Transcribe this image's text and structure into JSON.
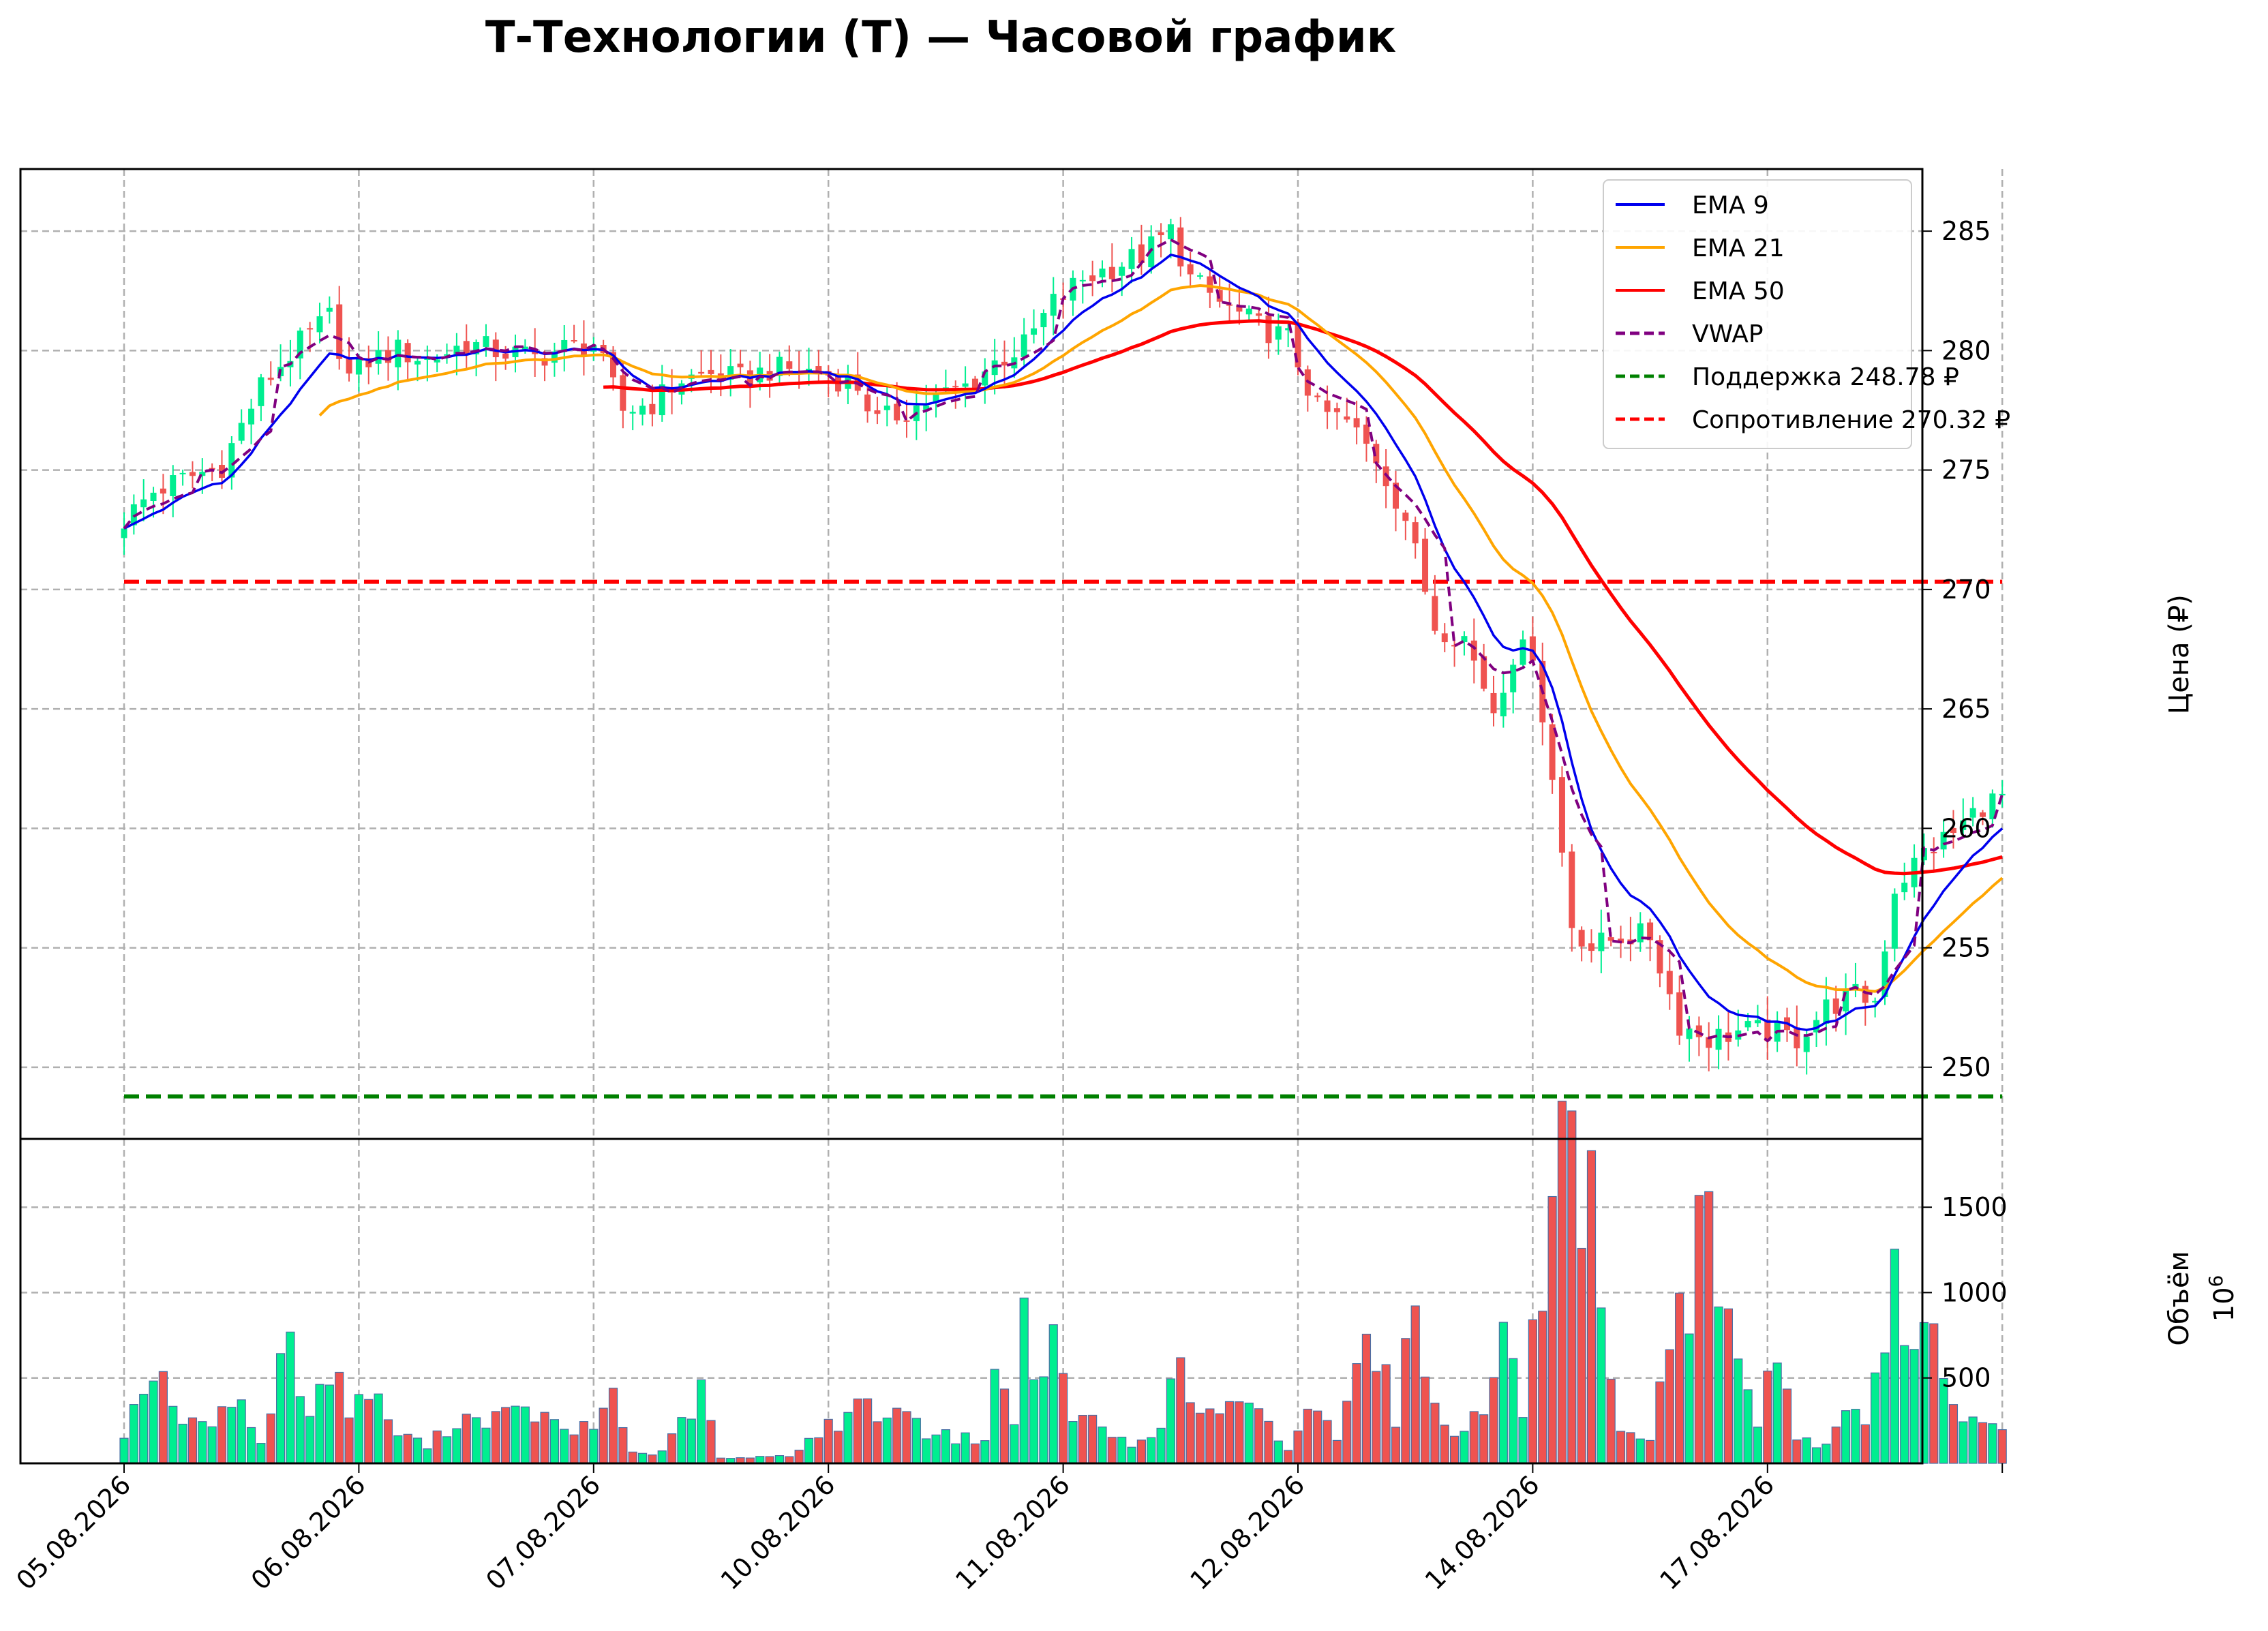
{
  "chart_data": {
    "type": "candlestick",
    "title": "Т-Технологии (Т) — Часовой график",
    "price_axis": {
      "ylabel": "Цена (₽)",
      "ylim": [
        247.0,
        287.6
      ],
      "ticks": [
        250,
        255,
        260,
        265,
        270,
        275,
        280,
        285
      ]
    },
    "volume_axis": {
      "ylabel": "Объём",
      "multiplier": "10^6",
      "multiplier_base": "10",
      "multiplier_exp": "6",
      "ylim": [
        0,
        1900
      ],
      "ticks": [
        500,
        1000,
        1500
      ]
    },
    "x_ticks": [
      {
        "label": "05.08.2026",
        "index": 0
      },
      {
        "label": "06.08.2026",
        "index": 24
      },
      {
        "label": "07.08.2026",
        "index": 48
      },
      {
        "label": "10.08.2026",
        "index": 72
      },
      {
        "label": "11.08.2026",
        "index": 96
      },
      {
        "label": "12.08.2026",
        "index": 120
      },
      {
        "label": "14.08.2026",
        "index": 144
      },
      {
        "label": "17.08.2026",
        "index": 168
      },
      {
        "label": "",
        "index": 192
      }
    ],
    "grid": true,
    "legend_position": "top-right",
    "legend": [
      {
        "label": "EMA 9",
        "color": "#0000ee",
        "style": "solid"
      },
      {
        "label": "EMA 21",
        "color": "#ffa500",
        "style": "solid"
      },
      {
        "label": "EMA 50",
        "color": "#ff0000",
        "style": "solid"
      },
      {
        "label": "VWAP",
        "color": "#800080",
        "style": "dashed"
      },
      {
        "label": "Поддержка 248.78 ₽",
        "color": "#008000",
        "style": "dashed"
      },
      {
        "label": "Сопротивление 270.32 ₽",
        "color": "#ff0000",
        "style": "dashed"
      }
    ],
    "support": 248.78,
    "resistance": 270.32,
    "colors": {
      "up": "#00ee90",
      "down": "#ef5350",
      "ema9": "#0000ee",
      "ema21": "#ffa500",
      "ema50": "#ff0000",
      "vwap": "#800080",
      "support": "#008000",
      "resistance": "#ff0000"
    },
    "close_path": [
      [
        0,
        272.9
      ],
      [
        3,
        274.1
      ],
      [
        6,
        274.6
      ],
      [
        10,
        275.2
      ],
      [
        14,
        278.5
      ],
      [
        18,
        280.3
      ],
      [
        21,
        281.4
      ],
      [
        23,
        278.9
      ],
      [
        25,
        279.6
      ],
      [
        28,
        280.0
      ],
      [
        31,
        279.6
      ],
      [
        35,
        280.3
      ],
      [
        38,
        280.0
      ],
      [
        42,
        279.7
      ],
      [
        45,
        280.1
      ],
      [
        48,
        280.3
      ],
      [
        51,
        277.5
      ],
      [
        54,
        277.8
      ],
      [
        57,
        278.8
      ],
      [
        60,
        279.0
      ],
      [
        63,
        278.8
      ],
      [
        66,
        279.2
      ],
      [
        69,
        279.2
      ],
      [
        72,
        279.0
      ],
      [
        75,
        278.5
      ],
      [
        77,
        277.0
      ],
      [
        80,
        277.5
      ],
      [
        83,
        278.0
      ],
      [
        86,
        278.5
      ],
      [
        89,
        279.5
      ],
      [
        92,
        280.2
      ],
      [
        95,
        282.0
      ],
      [
        98,
        283.0
      ],
      [
        101,
        283.5
      ],
      [
        104,
        284.0
      ],
      [
        107,
        285.0
      ],
      [
        109,
        283.0
      ],
      [
        112,
        282.0
      ],
      [
        116,
        281.0
      ],
      [
        119,
        280.5
      ],
      [
        122,
        277.5
      ],
      [
        125,
        277.0
      ],
      [
        128,
        275.5
      ],
      [
        131,
        273.0
      ],
      [
        134,
        268.5
      ],
      [
        137,
        268.0
      ],
      [
        140,
        265.0
      ],
      [
        142,
        267.3
      ],
      [
        144,
        267.5
      ],
      [
        146,
        262.0
      ],
      [
        148,
        256.0
      ],
      [
        150,
        255.0
      ],
      [
        153,
        255.5
      ],
      [
        156,
        255.5
      ],
      [
        159,
        251.8
      ],
      [
        162,
        251.2
      ],
      [
        165,
        251.5
      ],
      [
        168,
        251.5
      ],
      [
        171,
        251.2
      ],
      [
        174,
        252.5
      ],
      [
        177,
        253.0
      ],
      [
        179,
        252.8
      ],
      [
        181,
        257.5
      ],
      [
        184,
        259.0
      ],
      [
        187,
        259.8
      ],
      [
        190,
        261.0
      ],
      [
        192,
        261.3
      ]
    ],
    "volume_keyframes": [
      [
        0,
        190
      ],
      [
        3,
        580
      ],
      [
        5,
        300
      ],
      [
        8,
        200
      ],
      [
        11,
        420
      ],
      [
        14,
        120
      ],
      [
        17,
        750
      ],
      [
        19,
        280
      ],
      [
        21,
        560
      ],
      [
        23,
        330
      ],
      [
        25,
        420
      ],
      [
        28,
        180
      ],
      [
        31,
        100
      ],
      [
        34,
        260
      ],
      [
        37,
        270
      ],
      [
        40,
        280
      ],
      [
        42,
        300
      ],
      [
        45,
        180
      ],
      [
        48,
        210
      ],
      [
        50,
        420
      ],
      [
        52,
        60
      ],
      [
        55,
        60
      ],
      [
        59,
        410
      ],
      [
        61,
        30
      ],
      [
        64,
        30
      ],
      [
        68,
        50
      ],
      [
        72,
        220
      ],
      [
        74,
        250
      ],
      [
        76,
        390
      ],
      [
        78,
        250
      ],
      [
        80,
        350
      ],
      [
        82,
        180
      ],
      [
        85,
        150
      ],
      [
        88,
        140
      ],
      [
        89,
        490
      ],
      [
        91,
        300
      ],
      [
        92,
        880
      ],
      [
        94,
        420
      ],
      [
        95,
        650
      ],
      [
        97,
        300
      ],
      [
        100,
        200
      ],
      [
        103,
        100
      ],
      [
        106,
        250
      ],
      [
        108,
        550
      ],
      [
        110,
        270
      ],
      [
        113,
        330
      ],
      [
        116,
        280
      ],
      [
        119,
        80
      ],
      [
        121,
        330
      ],
      [
        124,
        170
      ],
      [
        126,
        740
      ],
      [
        128,
        690
      ],
      [
        130,
        280
      ],
      [
        132,
        920
      ],
      [
        134,
        320
      ],
      [
        136,
        200
      ],
      [
        139,
        290
      ],
      [
        141,
        800
      ],
      [
        143,
        300
      ],
      [
        145,
        1080
      ],
      [
        147,
        1730
      ],
      [
        148,
        1760
      ],
      [
        149,
        1030
      ],
      [
        150,
        1500
      ],
      [
        151,
        730
      ],
      [
        153,
        170
      ],
      [
        156,
        110
      ],
      [
        159,
        1100
      ],
      [
        160,
        800
      ],
      [
        161,
        1620
      ],
      [
        163,
        1050
      ],
      [
        165,
        560
      ],
      [
        167,
        270
      ],
      [
        169,
        640
      ],
      [
        171,
        180
      ],
      [
        174,
        90
      ],
      [
        176,
        270
      ],
      [
        178,
        290
      ],
      [
        180,
        680
      ],
      [
        181,
        1100
      ],
      [
        183,
        640
      ],
      [
        184,
        1020
      ],
      [
        186,
        450
      ],
      [
        188,
        290
      ],
      [
        190,
        210
      ],
      [
        192,
        170
      ]
    ]
  }
}
